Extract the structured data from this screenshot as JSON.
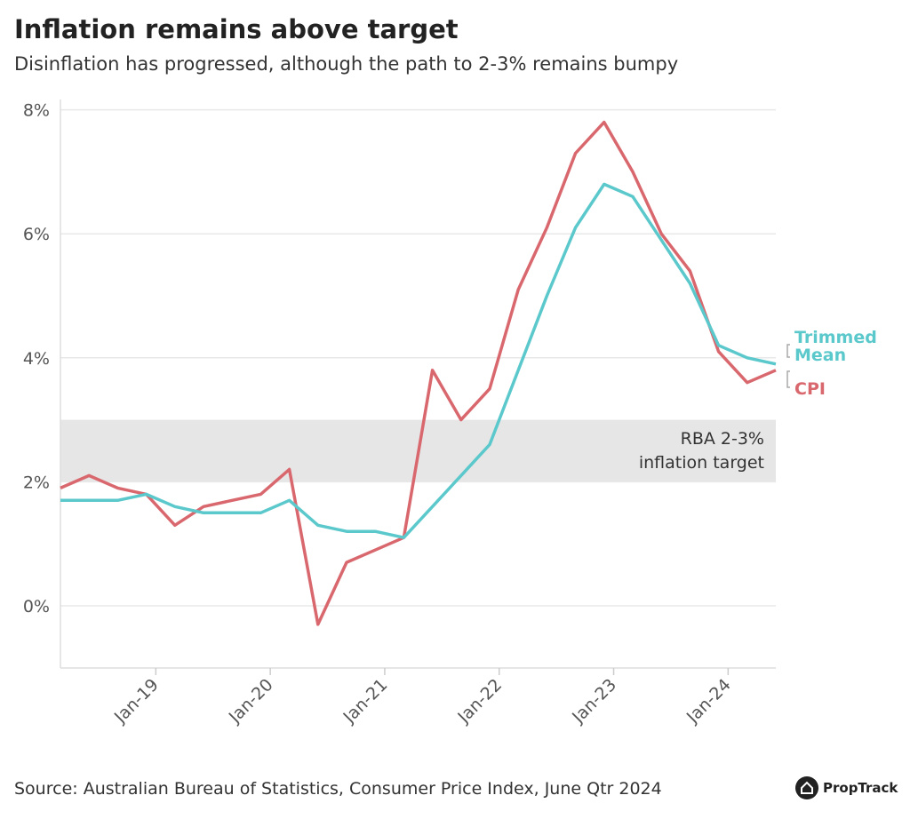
{
  "title": "Inflation remains above target",
  "subtitle": "Disinflation has progressed, although the path to 2-3% remains bumpy",
  "source": "Source: Australian Bureau of Statistics, Consumer Price Index, June Qtr 2024",
  "logo": "PropTrack",
  "chart_data": {
    "type": "line",
    "ylim": [
      -1,
      8
    ],
    "yticks": [
      0,
      2,
      4,
      6,
      8
    ],
    "ytick_labels": [
      "0%",
      "2%",
      "4%",
      "6%",
      "8%"
    ],
    "xticks": [
      "Jan-19",
      "Jan-20",
      "Jan-21",
      "Jan-22",
      "Jan-23",
      "Jan-24"
    ],
    "grid": true,
    "band": {
      "from": 2,
      "to": 3,
      "label_line1": "RBA 2-3%",
      "label_line2": "inflation target",
      "color": "#e6e6e6"
    },
    "x": [
      "Mar-18",
      "Jun-18",
      "Sep-18",
      "Dec-18",
      "Mar-19",
      "Jun-19",
      "Sep-19",
      "Dec-19",
      "Mar-20",
      "Jun-20",
      "Sep-20",
      "Dec-20",
      "Mar-21",
      "Jun-21",
      "Sep-21",
      "Dec-21",
      "Mar-22",
      "Jun-22",
      "Sep-22",
      "Dec-22",
      "Mar-23",
      "Jun-23",
      "Sep-23",
      "Dec-23",
      "Mar-24",
      "Jun-24"
    ],
    "series": [
      {
        "name": "CPI",
        "color": "#d9686e",
        "values": [
          1.9,
          2.1,
          1.9,
          1.8,
          1.3,
          1.6,
          1.7,
          1.8,
          2.2,
          -0.3,
          0.7,
          0.9,
          1.1,
          3.8,
          3.0,
          3.5,
          5.1,
          6.1,
          7.3,
          7.8,
          7.0,
          6.0,
          5.4,
          4.1,
          3.6,
          3.8
        ]
      },
      {
        "name_line1": "Trimmed",
        "name_line2": "Mean",
        "color": "#5bc8cc",
        "values": [
          1.7,
          1.7,
          1.7,
          1.8,
          1.6,
          1.5,
          1.5,
          1.5,
          1.7,
          1.3,
          1.2,
          1.2,
          1.1,
          1.6,
          2.1,
          2.6,
          3.8,
          5.0,
          6.1,
          6.8,
          6.6,
          5.9,
          5.2,
          4.2,
          4.0,
          3.9
        ]
      }
    ]
  }
}
